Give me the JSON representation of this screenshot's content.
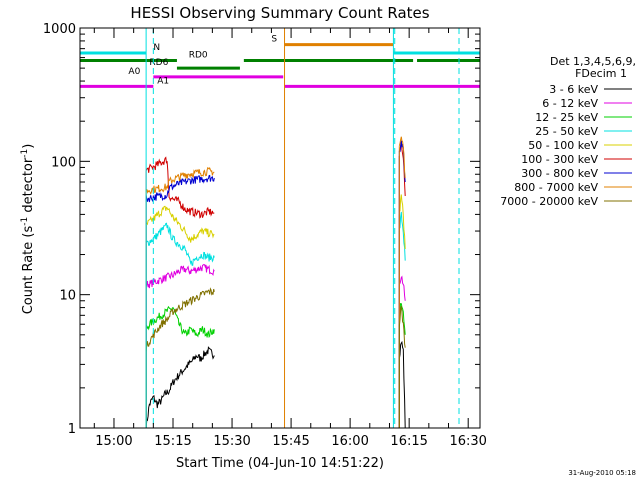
{
  "chart_data": {
    "type": "line",
    "title": "HESSI Observing Summary Count Rates",
    "xlabel": "Start Time (04-Jun-10 14:51:22)",
    "ylabel_main": "Count Rate (s",
    "ylabel_sup1": "-1",
    "ylabel_mid": " detector",
    "ylabel_sup2": "-1",
    "ylabel_end": ")",
    "y_scale": "log",
    "ylim": [
      1,
      1000
    ],
    "xlim": [
      "14:51:22",
      "16:33:00"
    ],
    "x_ticks": [
      "15:00",
      "15:15",
      "15:30",
      "15:45",
      "16:00",
      "16:15",
      "16:30"
    ],
    "y_ticks": [
      "1",
      "10",
      "100",
      "1000"
    ],
    "grid": false,
    "date_stamp": "31-Aug-2010 05:18",
    "legend": {
      "position": "right",
      "header1": "Det 1,3,4,5,6,9,",
      "header2": "FDecim 1",
      "entries": [
        {
          "label": "3 - 6 keV",
          "color": "#000000"
        },
        {
          "label": "6 - 12 keV",
          "color": "#e000e0"
        },
        {
          "label": "12 - 25 keV",
          "color": "#00d000"
        },
        {
          "label": "25 - 50 keV",
          "color": "#00e0e0"
        },
        {
          "label": "50 - 100 keV",
          "color": "#d8d000"
        },
        {
          "label": "100 - 300 keV",
          "color": "#d00000"
        },
        {
          "label": "300 - 800 keV",
          "color": "#0000d0"
        },
        {
          "label": "800 - 7000 keV",
          "color": "#e08000"
        },
        {
          "label": "7000 - 20000 keV",
          "color": "#807000"
        }
      ]
    },
    "series": [
      {
        "name": "3 - 6 keV",
        "color": "#000000",
        "segments": [
          {
            "t": [
              "15:08:10",
              "15:09:00",
              "15:10:00",
              "15:11:00",
              "15:12:00",
              "15:13:00",
              "15:14:00",
              "15:15:00",
              "15:16:00",
              "15:17:00",
              "15:18:00",
              "15:19:00",
              "15:20:00",
              "15:21:00",
              "15:22:00",
              "15:23:00",
              "15:24:00",
              "15:25:30"
            ],
            "v": [
              1.0,
              1.5,
              1.7,
              1.5,
              1.6,
              1.8,
              1.9,
              2.2,
              2.4,
              2.6,
              2.8,
              3.0,
              3.2,
              3.5,
              3.3,
              3.6,
              3.8,
              3.5
            ]
          },
          {
            "t": [
              "16:12:30",
              "16:13:00",
              "16:13:30",
              "16:14:00"
            ],
            "v": [
              3.5,
              4.5,
              3.8,
              1.0
            ]
          }
        ]
      },
      {
        "name": "6 - 12 keV",
        "color": "#e000e0",
        "segments": [
          {
            "t": [
              "15:08:10",
              "15:09:00",
              "15:10:30",
              "15:12:00",
              "15:13:30",
              "15:15:00",
              "15:16:30",
              "15:18:00",
              "15:19:30",
              "15:21:00",
              "15:22:30",
              "15:24:00",
              "15:25:30"
            ],
            "v": [
              12,
              12,
              12.5,
              13,
              13.5,
              14,
              15,
              15.5,
              15,
              15.5,
              16,
              15.5,
              15
            ]
          },
          {
            "t": [
              "16:12:30",
              "16:13:00",
              "16:13:30",
              "16:14:00"
            ],
            "v": [
              12,
              14,
              12,
              9
            ]
          }
        ]
      },
      {
        "name": "12 - 25 keV",
        "color": "#00d000",
        "segments": [
          {
            "t": [
              "15:08:10",
              "15:09:00",
              "15:10:30",
              "15:12:00",
              "15:13:30",
              "15:15:00",
              "15:16:30",
              "15:18:00",
              "15:19:30",
              "15:21:00",
              "15:22:30",
              "15:24:00",
              "15:25:30"
            ],
            "v": [
              5.5,
              6.0,
              6.5,
              7.0,
              7.5,
              8.0,
              6.0,
              5.0,
              5.5,
              5.0,
              5.5,
              5.0,
              5.5
            ]
          },
          {
            "t": [
              "16:12:30",
              "16:13:00",
              "16:13:30",
              "16:14:00"
            ],
            "v": [
              7,
              9,
              7,
              5
            ]
          }
        ]
      },
      {
        "name": "25 - 50 keV",
        "color": "#00e0e0",
        "segments": [
          {
            "t": [
              "15:08:10",
              "15:09:00",
              "15:10:30",
              "15:12:00",
              "15:13:30",
              "15:15:00",
              "15:16:30",
              "15:18:00",
              "15:19:30",
              "15:21:00",
              "15:22:30",
              "15:24:00",
              "15:25:30"
            ],
            "v": [
              24,
              25,
              27,
              30,
              33,
              26,
              24,
              22,
              17,
              19,
              20,
              19,
              19
            ]
          },
          {
            "t": [
              "16:12:30",
              "16:13:00",
              "16:13:30",
              "16:14:00"
            ],
            "v": [
              30,
              40,
              30,
              18
            ]
          }
        ]
      },
      {
        "name": "50 - 100 keV",
        "color": "#d8d000",
        "segments": [
          {
            "t": [
              "15:08:10",
              "15:09:00",
              "15:10:30",
              "15:12:00",
              "15:13:30",
              "15:15:00",
              "15:16:30",
              "15:18:00",
              "15:19:30",
              "15:21:00",
              "15:22:30",
              "15:24:00",
              "15:25:30"
            ],
            "v": [
              33,
              35,
              38,
              42,
              45,
              38,
              34,
              30,
              26,
              28,
              30,
              29,
              28
            ]
          },
          {
            "t": [
              "16:12:30",
              "16:13:00",
              "16:13:30",
              "16:14:00"
            ],
            "v": [
              40,
              55,
              40,
              22
            ]
          }
        ]
      },
      {
        "name": "100 - 300 keV",
        "color": "#d00000",
        "segments": [
          {
            "t": [
              "15:08:10",
              "15:09:00",
              "15:10:30",
              "15:12:00",
              "15:13:30",
              "15:14:00",
              "15:15:00",
              "15:16:30",
              "15:18:00",
              "15:19:30",
              "15:21:00",
              "15:22:30",
              "15:24:00",
              "15:25:30"
            ],
            "v": [
              85,
              88,
              92,
              98,
              103,
              55,
              52,
              50,
              44,
              42,
              41,
              40,
              42,
              41
            ]
          },
          {
            "t": [
              "16:12:30",
              "16:13:00",
              "16:13:30",
              "16:14:00"
            ],
            "v": [
              110,
              140,
              110,
              55
            ]
          }
        ]
      },
      {
        "name": "300 - 800 keV",
        "color": "#0000d0",
        "segments": [
          {
            "t": [
              "15:08:10",
              "15:09:00",
              "15:10:30",
              "15:12:00",
              "15:13:30",
              "15:14:00",
              "15:15:00",
              "15:16:30",
              "15:18:00",
              "15:19:30",
              "15:21:00",
              "15:22:30",
              "15:24:00",
              "15:25:30"
            ],
            "v": [
              52,
              53,
              54,
              55,
              56,
              63,
              65,
              68,
              70,
              72,
              73,
              74,
              75,
              75
            ]
          },
          {
            "t": [
              "16:12:30",
              "16:13:00",
              "16:13:30",
              "16:14:00"
            ],
            "v": [
              120,
              140,
              120,
              70
            ]
          }
        ]
      },
      {
        "name": "800 - 7000 keV",
        "color": "#e08000",
        "segments": [
          {
            "t": [
              "15:08:10",
              "15:09:00",
              "15:10:30",
              "15:12:00",
              "15:13:30",
              "15:14:00",
              "15:15:00",
              "15:16:30",
              "15:18:00",
              "15:19:30",
              "15:21:00",
              "15:22:30",
              "15:24:00",
              "15:25:30"
            ],
            "v": [
              60,
              61,
              62,
              63,
              64,
              70,
              73,
              76,
              79,
              81,
              82,
              83,
              84,
              83
            ]
          },
          {
            "t": [
              "16:12:30",
              "16:13:00",
              "16:13:30",
              "16:14:00"
            ],
            "v": [
              130,
              150,
              130,
              75
            ]
          }
        ]
      },
      {
        "name": "7000 - 20000 keV",
        "color": "#807000",
        "segments": [
          {
            "t": [
              "15:08:10",
              "15:09:00",
              "15:10:30",
              "15:12:00",
              "15:13:30",
              "15:15:00",
              "15:16:30",
              "15:18:00",
              "15:19:30",
              "15:21:00",
              "15:22:30",
              "15:24:00",
              "15:25:30"
            ],
            "v": [
              4.0,
              4.5,
              5.2,
              6.0,
              6.5,
              7.5,
              8.0,
              8.5,
              9.0,
              9.5,
              10.0,
              10.5,
              10.5
            ]
          },
          {
            "t": [
              "16:12:30",
              "16:13:00",
              "16:13:30",
              "16:14:00"
            ],
            "v": [
              6,
              8,
              6,
              4
            ]
          }
        ]
      }
    ],
    "flag_bars": [
      {
        "label": "N",
        "color": "#00e0e0",
        "level": 650,
        "label_at": "15:10:00",
        "segments": [
          [
            "14:51:22",
            "15:08:10"
          ],
          [
            "16:11:00",
            "16:33:00"
          ]
        ]
      },
      {
        "label": "S",
        "color": "#e08000",
        "level": 750,
        "label_at": "15:40:00",
        "segments": [
          [
            "15:43:20",
            "16:11:00"
          ]
        ]
      },
      {
        "label": "RD0",
        "color": "#008000",
        "level": 570,
        "label_at": "15:19:00",
        "segments": [
          [
            "14:51:22",
            "15:16:00"
          ],
          [
            "15:33:00",
            "16:11:00"
          ],
          [
            "16:11:00",
            "16:16:00"
          ],
          [
            "16:17:00",
            "16:33:00"
          ]
        ]
      },
      {
        "label": "RD6",
        "color": "#008000",
        "level": 500,
        "label_at": "15:09:00",
        "segments": [
          [
            "15:16:00",
            "15:32:00"
          ]
        ]
      },
      {
        "label": "A0",
        "color": "#e000e0",
        "level": 430,
        "label_at": "15:03:40",
        "segments": [
          [
            "15:10:00",
            "15:43:00"
          ]
        ]
      },
      {
        "label": "A1",
        "color": "#e000e0",
        "level": 365,
        "label_at": "15:11:00",
        "segments": [
          [
            "14:51:22",
            "15:10:00"
          ],
          [
            "15:43:20",
            "16:33:00"
          ]
        ]
      }
    ],
    "vlines_solid": [
      {
        "t": "14:51:22",
        "color": "#00e0e0"
      },
      {
        "t": "15:08:10",
        "color": "#00e0e0"
      },
      {
        "t": "15:43:20",
        "color": "#e08000"
      },
      {
        "t": "16:11:00",
        "color": "#00e0e0"
      }
    ],
    "vlines_dashed": [
      {
        "t": "15:10:00",
        "color": "#00e0e0"
      },
      {
        "t": "16:11:20",
        "color": "#00e0e0"
      },
      {
        "t": "16:27:40",
        "color": "#00e0e0"
      }
    ]
  }
}
